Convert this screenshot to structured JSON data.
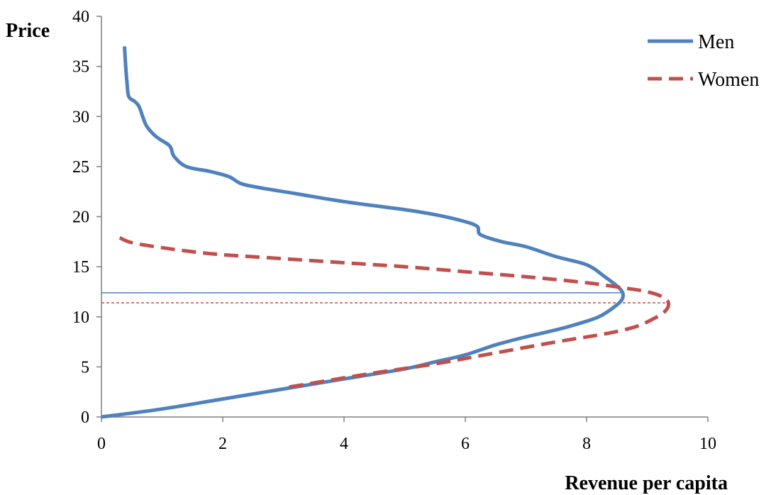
{
  "chart_data": {
    "type": "line",
    "title": "",
    "xlabel": "Revenue per capita",
    "ylabel": "Price",
    "xlim": [
      0,
      10
    ],
    "ylim": [
      0,
      40
    ],
    "x_ticks": [
      0,
      2,
      4,
      6,
      8,
      10
    ],
    "y_ticks": [
      0,
      5,
      10,
      15,
      20,
      25,
      30,
      35,
      40
    ],
    "grid": false,
    "legend_position": "top-right",
    "series": [
      {
        "name": "Men",
        "color": "#4F81BD",
        "style": "solid",
        "points": [
          [
            0.38,
            37.0
          ],
          [
            0.4,
            35.0
          ],
          [
            0.42,
            33.5
          ],
          [
            0.45,
            32.0
          ],
          [
            0.55,
            31.5
          ],
          [
            0.62,
            31.0
          ],
          [
            0.68,
            30.0
          ],
          [
            0.75,
            29.0
          ],
          [
            0.9,
            28.0
          ],
          [
            1.1,
            27.2
          ],
          [
            1.15,
            26.8
          ],
          [
            1.2,
            26.0
          ],
          [
            1.4,
            25.0
          ],
          [
            1.8,
            24.5
          ],
          [
            2.1,
            24.0
          ],
          [
            2.3,
            23.3
          ],
          [
            2.6,
            22.9
          ],
          [
            3.2,
            22.3
          ],
          [
            4.0,
            21.5
          ],
          [
            5.0,
            20.7
          ],
          [
            5.5,
            20.2
          ],
          [
            6.0,
            19.5
          ],
          [
            6.2,
            19.0
          ],
          [
            6.25,
            18.2
          ],
          [
            6.6,
            17.5
          ],
          [
            7.0,
            17.0
          ],
          [
            7.5,
            16.0
          ],
          [
            8.0,
            15.2
          ],
          [
            8.3,
            14.0
          ],
          [
            8.55,
            12.8
          ],
          [
            8.6,
            12.0
          ],
          [
            8.5,
            11.2
          ],
          [
            8.2,
            10.0
          ],
          [
            7.8,
            9.2
          ],
          [
            7.5,
            8.7
          ],
          [
            7.0,
            8.0
          ],
          [
            6.5,
            7.2
          ],
          [
            6.0,
            6.2
          ],
          [
            5.5,
            5.5
          ],
          [
            5.0,
            4.8
          ],
          [
            4.0,
            3.8
          ],
          [
            3.0,
            2.8
          ],
          [
            2.0,
            1.8
          ],
          [
            1.0,
            0.8
          ],
          [
            0.0,
            0.0
          ]
        ]
      },
      {
        "name": "Women",
        "color": "#C0504D",
        "style": "dashed",
        "points": [
          [
            0.3,
            17.9
          ],
          [
            0.5,
            17.4
          ],
          [
            1.0,
            16.9
          ],
          [
            1.5,
            16.5
          ],
          [
            2.0,
            16.2
          ],
          [
            3.0,
            15.8
          ],
          [
            4.0,
            15.4
          ],
          [
            5.0,
            15.0
          ],
          [
            6.0,
            14.5
          ],
          [
            7.0,
            14.0
          ],
          [
            8.0,
            13.4
          ],
          [
            8.6,
            12.9
          ],
          [
            9.0,
            12.5
          ],
          [
            9.25,
            12.0
          ],
          [
            9.35,
            11.4
          ],
          [
            9.3,
            10.6
          ],
          [
            9.1,
            9.8
          ],
          [
            8.8,
            9.0
          ],
          [
            8.3,
            8.3
          ],
          [
            7.5,
            7.5
          ],
          [
            6.5,
            6.4
          ],
          [
            5.5,
            5.3
          ],
          [
            4.5,
            4.4
          ],
          [
            3.5,
            3.4
          ],
          [
            3.0,
            2.9
          ]
        ]
      }
    ],
    "reference_lines": [
      {
        "series": "Men",
        "y": 12.4,
        "x_from": 0,
        "x_to": 8.6,
        "color": "#4F81BD",
        "style": "solid"
      },
      {
        "series": "Women",
        "y": 11.4,
        "x_from": 0,
        "x_to": 9.35,
        "color": "#C0504D",
        "style": "dashed"
      }
    ]
  }
}
